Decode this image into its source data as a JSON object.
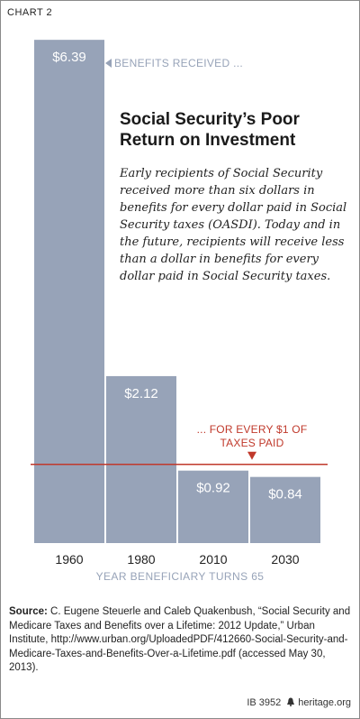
{
  "chart_label": "CHART 2",
  "chart_data": {
    "type": "bar",
    "categories": [
      "1960",
      "1980",
      "2010",
      "2030"
    ],
    "values": [
      6.39,
      2.12,
      0.92,
      0.84
    ],
    "value_labels": [
      "$6.39",
      "$2.12",
      "$0.92",
      "$0.84"
    ],
    "title": "Social Security’s Poor Return on Investment",
    "xlabel": "YEAR BENEFICIARY TURNS 65",
    "ylabel": "",
    "reference_line": {
      "value": 1.0,
      "label": "... FOR EVERY $1 OF TAXES PAID"
    },
    "annotation": "BENEFITS RECEIVED ...",
    "grid": false,
    "colors": {
      "bar": "#97a3b8",
      "reference_line": "#c0392b",
      "bar_label": "#ffffff"
    }
  },
  "description": "Early recipients of Social Security received more than six dollars in benefits for every dollar paid in Social Security taxes (OASDI). Today and in the future, recipients will receive less than a dollar in benefits for every dollar  paid in Social Security taxes.",
  "source": {
    "label": "Source:",
    "text": "C. Eugene Steuerle and Caleb Quakenbush, “Social Security and Medicare Taxes and Benefits over a Lifetime: 2012 Update,” Urban Institute, http://www.urban.org/UploadedPDF/412660-Social-Security-and-Medicare-Taxes-and-Benefits-Over-a-Lifetime.pdf (accessed May 30, 2013)."
  },
  "footer": {
    "id": "IB 3952",
    "site": "heritage.org"
  }
}
